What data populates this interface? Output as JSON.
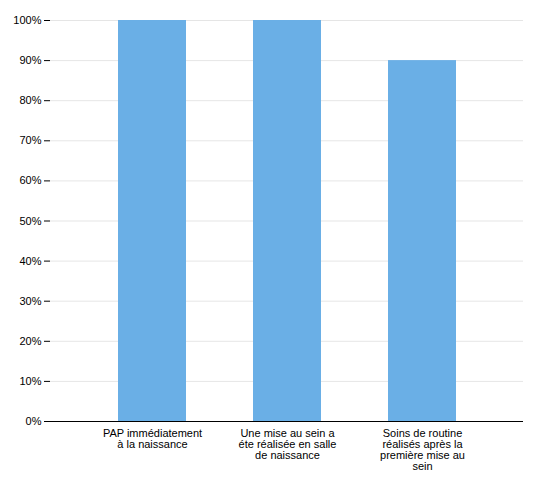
{
  "chart_data": {
    "type": "bar",
    "categories": [
      "PAP immédiatement\nà la naissance",
      "Une mise au sein a\néte réalisée en salle\nde naissance",
      "Soins de routine\nréalisés après la\npremière mise au\nsein"
    ],
    "values": [
      100,
      100,
      90
    ],
    "color": "#6aafe6",
    "ylim": [
      0,
      100
    ],
    "yticks": [
      {
        "value": 0,
        "label": "0%"
      },
      {
        "value": 10,
        "label": "10%"
      },
      {
        "value": 20,
        "label": "20%"
      },
      {
        "value": 30,
        "label": "30%"
      },
      {
        "value": 40,
        "label": "40%"
      },
      {
        "value": 50,
        "label": "50%"
      },
      {
        "value": 60,
        "label": "60%"
      },
      {
        "value": 70,
        "label": "70%"
      },
      {
        "value": 80,
        "label": "80%"
      },
      {
        "value": 90,
        "label": "90%"
      },
      {
        "value": 100,
        "label": "100%"
      }
    ],
    "grid": true
  }
}
